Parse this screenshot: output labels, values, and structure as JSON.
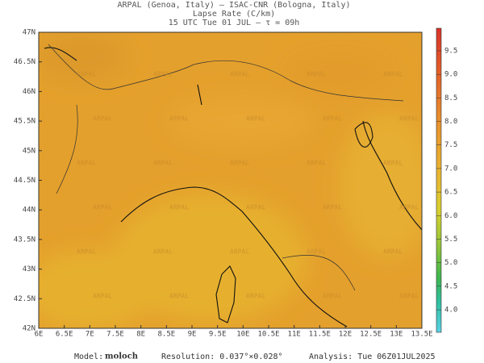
{
  "header": {
    "line1": "ARPAL (Genoa, Italy)  –  ISAC-CNR (Bologna, Italy)",
    "line2": "Lapse Rate (C/km)",
    "line3": "15 UTC Tue 01 JUL  –  τ = 09h"
  },
  "map": {
    "lat_labels": [
      "47N",
      "46.5N",
      "46N",
      "45.5N",
      "45N",
      "44.5N",
      "44N",
      "43.5N",
      "43N",
      "42.5N",
      "42N"
    ],
    "lon_labels": [
      "6E",
      "6.5E",
      "7E",
      "7.5E",
      "8E",
      "8.5E",
      "9E",
      "9.5E",
      "10E",
      "10.5E",
      "11E",
      "11.5E",
      "12E",
      "12.5E",
      "13E",
      "13.5E"
    ],
    "watermark": "ARPAL"
  },
  "colorbar": {
    "labels": [
      "9.5",
      "9.0",
      "8.5",
      "8.0",
      "7.5",
      "7.0",
      "6.5",
      "6.0",
      "5.5",
      "5.0",
      "4.5",
      "4.0"
    ]
  },
  "footer": {
    "model_label": "Model:",
    "model": "moloch",
    "resolution": "Resolution: 0.037°×0.028°",
    "analysis": "Analysis: Tue 06Z01JUL2025"
  }
}
